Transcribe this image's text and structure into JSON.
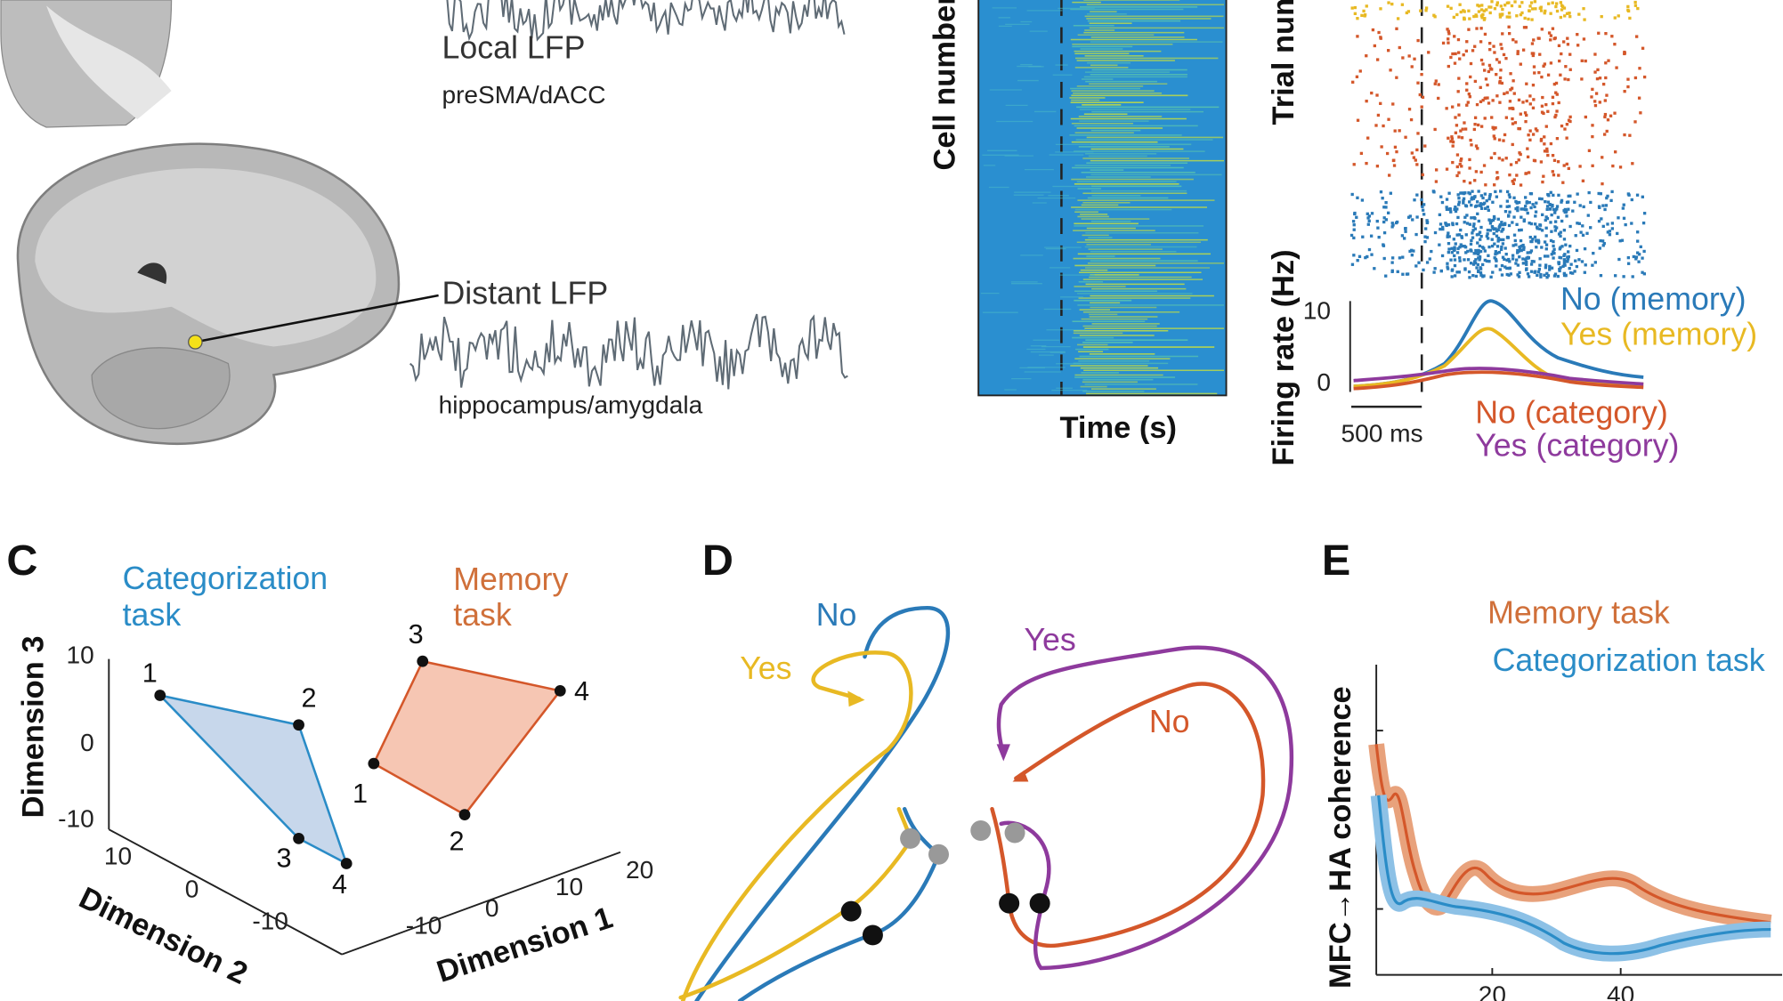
{
  "panel_a": {
    "local_label": "Local LFP",
    "local_region": "preSMA/dACC",
    "distant_label": "Distant LFP",
    "distant_region": "hippocampus/amygdala"
  },
  "panel_b": {
    "heatmap_y_label": "Cell number",
    "x_label": "Time (s)",
    "raster_y_label": "Trial number",
    "rate_y_label": "Firing rate (Hz)",
    "rate_ticks": [
      10,
      0
    ],
    "scale_bar": "500 ms",
    "legend": [
      "No (memory)",
      "Yes (memory)",
      "No (category)",
      "Yes (category)"
    ]
  },
  "panel_c": {
    "label": "C",
    "categorization": [
      "Categorization",
      "task"
    ],
    "memory": [
      "Memory",
      "task"
    ],
    "dim3": "Dimension 3",
    "dim2": "Dimension 2",
    "dim1": "Dimension 1",
    "dim3_ticks": [
      10,
      0,
      -10
    ],
    "dim2_ticks": [
      10,
      0,
      -10
    ],
    "dim1_ticks": [
      -10,
      0,
      10,
      20
    ],
    "categorization_points": [
      1,
      2,
      3,
      4
    ],
    "memory_points": [
      3,
      4,
      2,
      1
    ]
  },
  "panel_d": {
    "label": "D",
    "categorization_no": "No",
    "categorization_yes": "Yes",
    "memory_yes": "Yes",
    "memory_no": "No"
  },
  "panel_e": {
    "label": "E",
    "legend": [
      "Memory task",
      "Categorization task"
    ],
    "y_label": "MFC→HA coherence",
    "x_ticks": [
      20,
      40
    ]
  }
}
